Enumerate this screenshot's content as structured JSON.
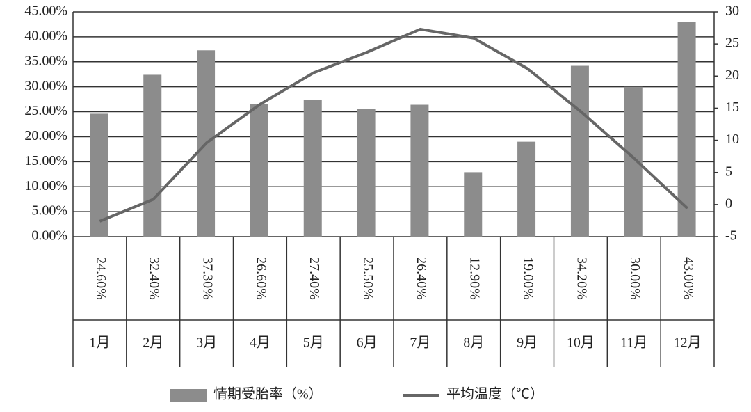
{
  "chart_data": {
    "type": "bar",
    "categories": [
      "1月",
      "2月",
      "3月",
      "4月",
      "5月",
      "6月",
      "7月",
      "8月",
      "9月",
      "10月",
      "11月",
      "12月"
    ],
    "series": [
      {
        "name": "情期受胎率（%）",
        "type": "bar",
        "color": "#8c8c8c",
        "values": [
          24.6,
          32.4,
          37.3,
          26.6,
          27.4,
          25.5,
          26.4,
          12.9,
          19.0,
          34.2,
          30.0,
          43.0
        ],
        "value_labels": [
          "24.60%",
          "32.40%",
          "37.30%",
          "26.60%",
          "27.40%",
          "25.50%",
          "26.40%",
          "12.90%",
          "19.00%",
          "34.20%",
          "30.00%",
          "43.00%"
        ]
      },
      {
        "name": "平均温度（℃）",
        "type": "line",
        "axis": "y2",
        "color": "#666666",
        "values": [
          -2.6,
          0.8,
          9.6,
          15.6,
          20.5,
          23.7,
          27.3,
          25.9,
          21.2,
          14.5,
          7.2,
          -0.6
        ]
      }
    ],
    "ylim": [
      0,
      45
    ],
    "yticks": [
      {
        "value": 0,
        "label": "0.00%"
      },
      {
        "value": 5,
        "label": "5.00%"
      },
      {
        "value": 10,
        "label": "10.00%"
      },
      {
        "value": 15,
        "label": "15.00%"
      },
      {
        "value": 20,
        "label": "20.00%"
      },
      {
        "value": 25,
        "label": "25.00%"
      },
      {
        "value": 30,
        "label": "30.00%"
      },
      {
        "value": 35,
        "label": "35.00%"
      },
      {
        "value": 40,
        "label": "40.00%"
      },
      {
        "value": 45,
        "label": "45.00%"
      }
    ],
    "y2lim": [
      -5,
      30
    ],
    "y2ticks": [
      -5,
      0,
      5,
      10,
      15,
      20,
      25,
      30
    ],
    "grid": true
  }
}
